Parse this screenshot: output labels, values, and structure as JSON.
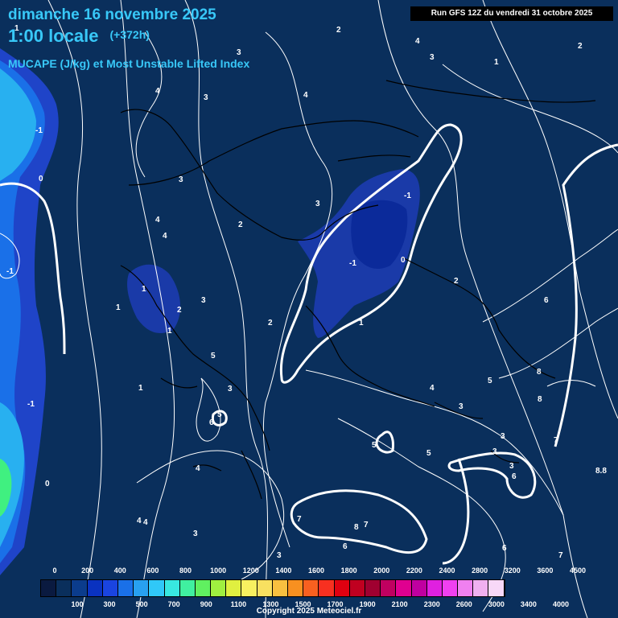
{
  "header": {
    "date_line": "dimanche 16 novembre 2025",
    "time_line": "1:00 locale",
    "forecast_hour": "(+372h)",
    "parameter": "MUCAPE (J/kg) et Most Unstable Lifted Index",
    "run_info": "Run GFS 12Z du vendredi 31 octobre 2025"
  },
  "colors": {
    "background": "#0a2f5c",
    "low_cape_blue": "#1f44c8",
    "cape_mid_blue": "#1a70e8",
    "cape_cyan": "#28b0f0",
    "cape_green": "#40f080",
    "contour_white": "#ffffff",
    "coast_black": "#000000"
  },
  "legend": {
    "top_labels": [
      "0",
      "200",
      "400",
      "600",
      "800",
      "1000",
      "1200",
      "1400",
      "1600",
      "1800",
      "2000",
      "2200",
      "2400",
      "2800",
      "3200",
      "3600",
      "4500"
    ],
    "bottom_labels": [
      "100",
      "300",
      "500",
      "700",
      "900",
      "1100",
      "1300",
      "1500",
      "1700",
      "1900",
      "2100",
      "2300",
      "2600",
      "3000",
      "3400",
      "4000"
    ],
    "swatch_colors": [
      "#0a1a40",
      "#0a2f5c",
      "#0b3c8c",
      "#0a32c0",
      "#1a44e0",
      "#1a70e8",
      "#28a0f0",
      "#30c8f8",
      "#38e8e0",
      "#40f0a0",
      "#60f060",
      "#a0f040",
      "#e0f040",
      "#f8f060",
      "#f8e060",
      "#f8c040",
      "#f89020",
      "#f86020",
      "#f83020",
      "#e00010",
      "#c00020",
      "#a00030",
      "#c00060",
      "#e00090",
      "#c000a0",
      "#e020e0",
      "#f040f0",
      "#f080f0",
      "#f0b0f0",
      "#f8d8f8"
    ]
  },
  "contour_labels": [
    "2",
    "4",
    "3",
    "1",
    "2",
    "3",
    "4",
    "3",
    "4",
    "-1",
    "0",
    "3",
    "1",
    "3",
    "2",
    "4",
    "4",
    "-1",
    "1",
    "-1",
    "0",
    "2",
    "1",
    "1",
    "2",
    "3",
    "2",
    "5",
    "1",
    "6",
    "3",
    "5",
    "-1",
    "6",
    "5",
    "4",
    "3",
    "5",
    "8",
    "8",
    "3",
    "5",
    "4",
    "3",
    "7",
    "3",
    "6",
    "8.8",
    "0",
    "4",
    "4",
    "3",
    "7",
    "8",
    "7",
    "6",
    "3",
    "6",
    "7",
    "1",
    "-1"
  ],
  "copyright": "Copyright 2025 Meteociel.fr"
}
